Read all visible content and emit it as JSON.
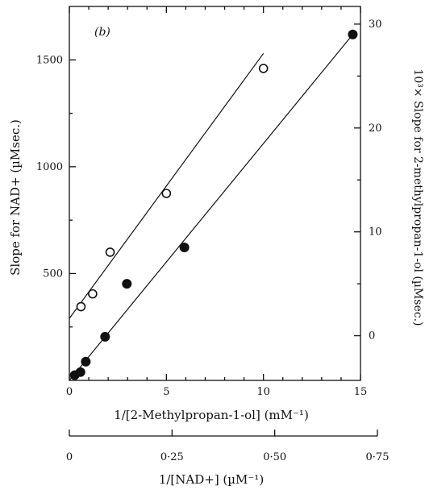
{
  "chart_data": {
    "type": "scatter",
    "panel_label": "(b)",
    "left_ylabel": "Slope for NAD+ (µMsec.)",
    "right_ylabel": "10³× Slope for 2-methylpropan-1-ol (µMsec.)",
    "xlabel": "1/[2-Methylpropan-1-ol] (mM⁻¹)",
    "x2label": "1/[NAD+] (µM⁻¹)",
    "xlim": [
      0,
      15
    ],
    "x_ticks": [
      0,
      5,
      10,
      15
    ],
    "x_minor_ticks": [
      1,
      2,
      3,
      4,
      6,
      7,
      8,
      9,
      11,
      12,
      13,
      14
    ],
    "ylim_left": [
      0,
      1750
    ],
    "y_left_ticks": [
      500,
      1000,
      1500
    ],
    "y_left_minor": [
      250,
      750,
      1250
    ],
    "ylim_right": [
      -4.3,
      31.7
    ],
    "y_right_ticks": [
      0,
      10,
      20,
      30
    ],
    "y_right_minor": [
      5,
      15,
      25
    ],
    "x2lim": [
      0,
      0.75
    ],
    "x2_ticks": [
      "0",
      "0·25",
      "0·50",
      "0·75"
    ],
    "x2_tick_values": [
      0,
      0.25,
      0.5,
      0.75
    ],
    "series": [
      {
        "marker": "open-circle",
        "axis": "left",
        "x": [
          0.6,
          1.2,
          2.1,
          5.0,
          10.0
        ],
        "y": [
          345,
          405,
          600,
          875,
          1460
        ],
        "fit": {
          "x": [
            0,
            10
          ],
          "y": [
            290,
            1530
          ]
        }
      },
      {
        "marker": "filled-circle",
        "axis": "right",
        "x2": [
          0.013,
          0.027,
          0.04,
          0.087,
          0.14,
          0.28,
          0.69
        ],
        "y": [
          -3.8,
          -3.5,
          -2.5,
          -0.1,
          5.0,
          8.5,
          29.0
        ],
        "fit": {
          "x2": [
            0,
            0.69
          ],
          "y": [
            -4.3,
            29.0
          ]
        }
      }
    ]
  }
}
